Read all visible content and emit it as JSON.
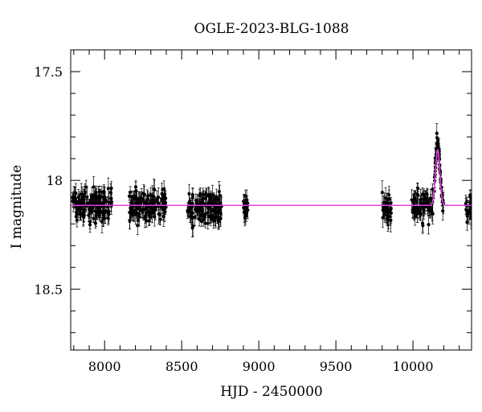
{
  "chart_data": {
    "type": "scatter",
    "title": "OGLE-2023-BLG-1088",
    "xlabel": "HJD - 2450000",
    "ylabel": "I magnitude",
    "xlim": [
      7780,
      10380
    ],
    "ylim": [
      18.78,
      17.4
    ],
    "y_inverted": true,
    "x_ticks": [
      8000,
      8500,
      9000,
      9500,
      10000
    ],
    "x_tick_labels": [
      "8000",
      "8500",
      "9000",
      "9500",
      "10000"
    ],
    "y_ticks": [
      17.5,
      18,
      18.5
    ],
    "y_tick_labels": [
      "17.5",
      "18",
      "18.5"
    ],
    "grid": false,
    "legend": "none",
    "baseline_mag": 18.115,
    "colors": {
      "points": "#000000",
      "model": "#e040e0"
    },
    "series": [
      {
        "type": "scatter_with_errorbars",
        "seasons": [
          {
            "x_range": [
              7790,
              8050
            ],
            "mag_mean": 18.115,
            "scatter": 0.035,
            "err": 0.03
          },
          {
            "x_range": [
              8160,
              8400
            ],
            "mag_mean": 18.115,
            "scatter": 0.035,
            "err": 0.03
          },
          {
            "x_range": [
              8530,
              8760
            ],
            "mag_mean": 18.125,
            "scatter": 0.035,
            "err": 0.03
          },
          {
            "x_range": [
              8900,
              8930
            ],
            "mag_mean": 18.12,
            "scatter": 0.025,
            "err": 0.03
          },
          {
            "x_range": [
              9800,
              9860
            ],
            "mag_mean": 18.13,
            "scatter": 0.035,
            "err": 0.035
          },
          {
            "x_range": [
              9990,
              10130
            ],
            "mag_mean": 18.11,
            "scatter": 0.035,
            "err": 0.03
          },
          {
            "x_range": [
              10140,
              10200
            ],
            "mag_mean": 18.1,
            "scatter": 0.03,
            "err": 0.03
          },
          {
            "x_range": [
              10340,
              10380
            ],
            "mag_mean": 18.13,
            "scatter": 0.03,
            "err": 0.03
          }
        ],
        "peak": {
          "x": 10160,
          "peak_mag": 17.83,
          "width_days": 14
        }
      },
      {
        "type": "line",
        "model": "microlensing_fit",
        "baseline": 18.115,
        "peak_x": 10160,
        "peak_mag": 17.86,
        "width_days": 14
      }
    ]
  }
}
